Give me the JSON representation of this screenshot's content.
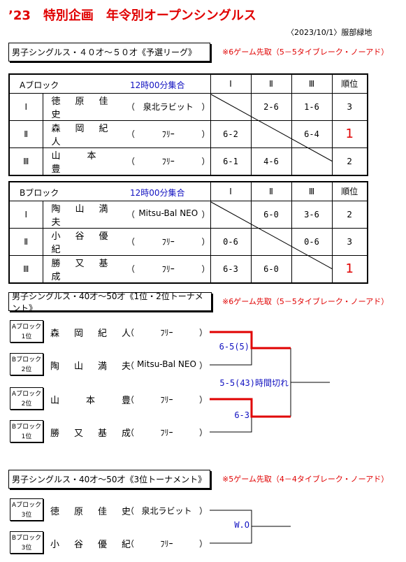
{
  "title": "’23　特別企画　年令別オープンシングルス",
  "venue": "〈2023/10/1〉服部緑地",
  "league": {
    "heading": "男子シングルス・４０才～５０才《予選リーグ》",
    "rule": "※6ゲーム先取（5－5タイブレーク・ノーアド）",
    "blocks": [
      {
        "name": "Aブロック",
        "meeting": "12時00分集合",
        "columns": [
          "Ⅰ",
          "Ⅱ",
          "Ⅲ",
          "順位"
        ],
        "rows": [
          {
            "no": "Ⅰ",
            "player": "徳　原　佳　史",
            "club": [
              "（",
              "泉北ラビット",
              "）"
            ],
            "scores": [
              null,
              "2-6",
              "1-6"
            ],
            "rank": "3",
            "rank_color": "#000000"
          },
          {
            "no": "Ⅱ",
            "player": "森　岡　紀　人",
            "club": [
              "（",
              "ﾌﾘｰ",
              "）"
            ],
            "scores": [
              "6-2",
              null,
              "6-4"
            ],
            "rank": "1",
            "rank_color": "#e00000"
          },
          {
            "no": "Ⅲ",
            "player": "山　　本　　豊",
            "club": [
              "（",
              "ﾌﾘｰ",
              "）"
            ],
            "scores": [
              "6-1",
              "4-6",
              null
            ],
            "rank": "2",
            "rank_color": "#000000"
          }
        ]
      },
      {
        "name": "Bブロック",
        "meeting": "12時00分集合",
        "columns": [
          "Ⅰ",
          "Ⅱ",
          "Ⅲ",
          "順位"
        ],
        "rows": [
          {
            "no": "Ⅰ",
            "player": "陶　山　満　夫",
            "club": [
              "（",
              "Mitsu-Bal NEO",
              "）"
            ],
            "scores": [
              null,
              "6-0",
              "3-6"
            ],
            "rank": "2",
            "rank_color": "#000000"
          },
          {
            "no": "Ⅱ",
            "player": "小　谷　優　紀",
            "club": [
              "（",
              "ﾌﾘｰ",
              "）"
            ],
            "scores": [
              "0-6",
              null,
              "0-6"
            ],
            "rank": "3",
            "rank_color": "#000000"
          },
          {
            "no": "Ⅲ",
            "player": "勝　又　基　成",
            "club": [
              "（",
              "ﾌﾘｰ",
              "）"
            ],
            "scores": [
              "6-3",
              "6-0",
              null
            ],
            "rank": "1",
            "rank_color": "#e00000"
          }
        ]
      }
    ]
  },
  "tournaments": [
    {
      "heading": "男子シングルス・40才～50才《1位・2位トーナメント》",
      "rule": "※6ゲーム先取（5－5タイブレーク・ノーアド）",
      "entries": [
        {
          "seed": [
            "Aブロック",
            "1位"
          ],
          "player": "森　岡　紀　人",
          "club": [
            "（",
            "ﾌﾘｰ",
            "）"
          ]
        },
        {
          "seed": [
            "Bブロック",
            "2位"
          ],
          "player": "陶　山　満　夫",
          "club": [
            "（",
            "Mitsu-Bal NEO",
            "）"
          ]
        },
        {
          "seed": [
            "Aブロック",
            "2位"
          ],
          "player": "山　　本　　豊",
          "club": [
            "（",
            "ﾌﾘｰ",
            "）"
          ]
        },
        {
          "seed": [
            "Bブロック",
            "1位"
          ],
          "player": "勝　又　基　成",
          "club": [
            "（",
            "ﾌﾘｰ",
            "）"
          ]
        }
      ],
      "matches": [
        "6-5(5)",
        "6-3",
        "5-5(43)時間切れ"
      ]
    },
    {
      "heading": "男子シングルス・40才～50才《3位トーナメント》",
      "rule": "※5ゲーム先取（4－4タイブレーク・ノーアド）",
      "entries": [
        {
          "seed": [
            "Aブロック",
            "3位"
          ],
          "player": "徳　原　佳　史",
          "club": [
            "（",
            "泉北ラビット",
            "）"
          ]
        },
        {
          "seed": [
            "Bブロック",
            "3位"
          ],
          "player": "小　谷　優　紀",
          "club": [
            "（",
            "ﾌﾘｰ",
            "）"
          ]
        }
      ],
      "matches": [
        "W.O"
      ]
    }
  ]
}
